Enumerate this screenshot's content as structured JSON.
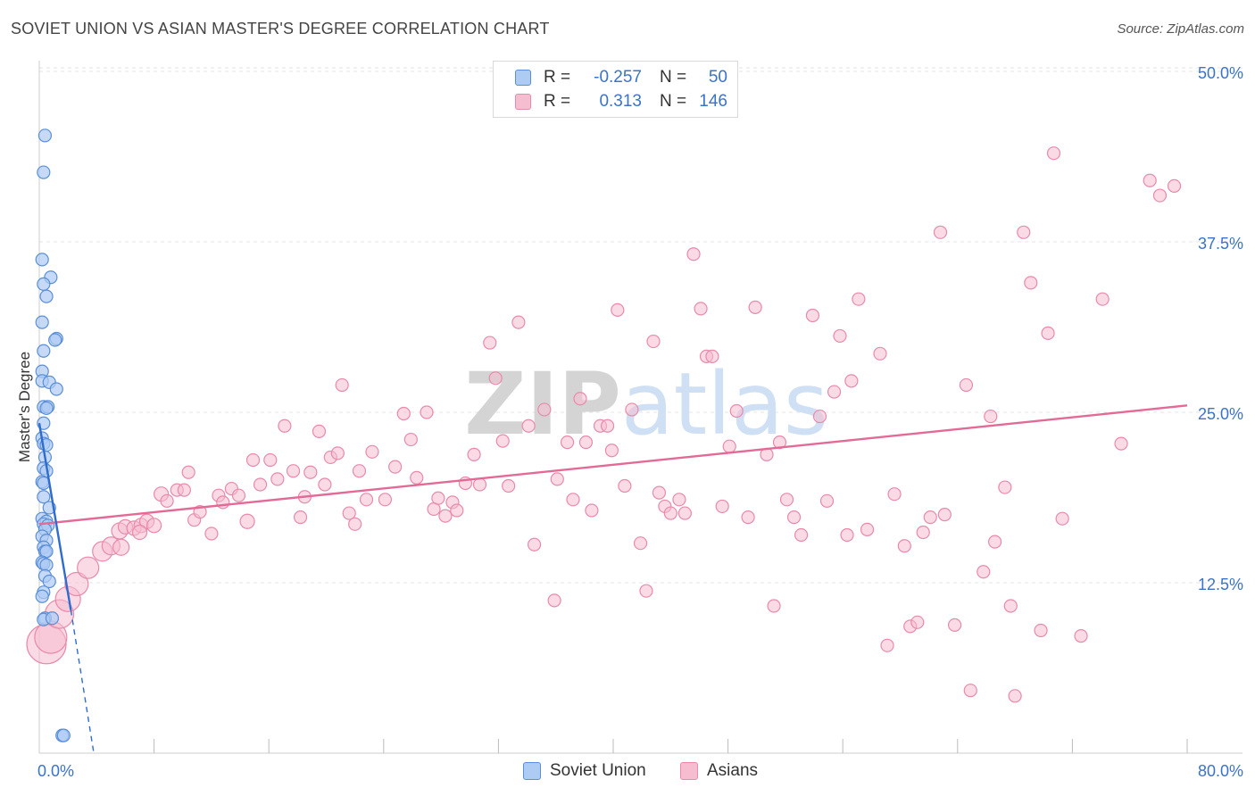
{
  "header": {
    "title": "SOVIET UNION VS ASIAN MASTER'S DEGREE CORRELATION CHART",
    "source": "Source: ZipAtlas.com"
  },
  "legend": {
    "rows": [
      {
        "r_label": "R =",
        "r_value": "-0.257",
        "n_label": "N =",
        "n_value": "50"
      },
      {
        "r_label": "R =",
        "r_value": "0.313",
        "n_label": "N =",
        "n_value": "146"
      }
    ],
    "bottom": [
      "Soviet Union",
      "Asians"
    ]
  },
  "colors": {
    "soviet_fill": "#aecbf3",
    "soviet_stroke": "#5a8fd8",
    "soviet_line": "#2f6ccf",
    "asian_fill": "#f6bcd0",
    "asian_stroke": "#e98aaa",
    "asian_line": "#e36a97",
    "axis_text": "#3b73c8",
    "grid": "#e4e4e4",
    "watermark": "#d7e3f3"
  },
  "chart_data": {
    "type": "scatter",
    "title": "SOVIET UNION VS ASIAN MASTER'S DEGREE CORRELATION CHART",
    "xlabel": "",
    "ylabel": "Master's Degree",
    "xlim": [
      0,
      80
    ],
    "ylim": [
      0,
      50
    ],
    "x_tick_labels": [
      "0.0%",
      "80.0%"
    ],
    "y_ticks": [
      12.5,
      25.0,
      37.5,
      50.0
    ],
    "y_tick_labels": [
      "12.5%",
      "25.0%",
      "37.5%",
      "50.0%"
    ],
    "watermark": "ZIPatlas",
    "series": [
      {
        "name": "Soviet Union",
        "R": -0.257,
        "N": 50,
        "trend": {
          "x0": 0.0,
          "y0": 24.2,
          "x1": 2.2,
          "y1": 10.5,
          "dash_to_x": 3.8,
          "dash_to_y": 0.0
        },
        "points": [
          [
            0.4,
            45.3
          ],
          [
            0.3,
            42.6
          ],
          [
            0.2,
            36.2
          ],
          [
            0.8,
            34.9
          ],
          [
            0.3,
            34.4
          ],
          [
            0.5,
            33.5
          ],
          [
            0.2,
            31.6
          ],
          [
            1.2,
            30.4
          ],
          [
            1.1,
            30.3
          ],
          [
            0.3,
            29.5
          ],
          [
            0.2,
            28.0
          ],
          [
            0.2,
            27.3
          ],
          [
            0.7,
            27.2
          ],
          [
            1.2,
            26.7
          ],
          [
            0.3,
            25.4
          ],
          [
            0.6,
            25.4
          ],
          [
            0.5,
            25.3
          ],
          [
            0.3,
            24.2
          ],
          [
            0.2,
            23.1
          ],
          [
            0.3,
            22.7
          ],
          [
            0.5,
            22.6
          ],
          [
            0.4,
            21.7
          ],
          [
            0.3,
            20.9
          ],
          [
            0.5,
            20.7
          ],
          [
            0.2,
            19.9
          ],
          [
            0.3,
            19.8
          ],
          [
            0.3,
            18.8
          ],
          [
            0.7,
            18.0
          ],
          [
            0.2,
            17.2
          ],
          [
            0.5,
            17.0
          ],
          [
            0.3,
            16.8
          ],
          [
            0.6,
            16.7
          ],
          [
            0.4,
            16.4
          ],
          [
            0.2,
            15.9
          ],
          [
            0.5,
            15.6
          ],
          [
            0.3,
            15.1
          ],
          [
            0.4,
            14.8
          ],
          [
            0.5,
            14.8
          ],
          [
            0.2,
            14.0
          ],
          [
            0.3,
            13.9
          ],
          [
            0.5,
            13.8
          ],
          [
            0.4,
            13.0
          ],
          [
            0.7,
            12.6
          ],
          [
            0.3,
            11.8
          ],
          [
            0.2,
            11.5
          ],
          [
            0.4,
            9.9
          ],
          [
            0.3,
            9.8
          ],
          [
            0.9,
            9.9
          ],
          [
            1.6,
            1.3
          ],
          [
            1.7,
            1.3
          ]
        ]
      },
      {
        "name": "Asians",
        "R": 0.313,
        "N": 146,
        "trend": {
          "x0": 0.0,
          "y0": 16.8,
          "x1": 80.0,
          "y1": 25.5
        },
        "points": [
          [
            0.5,
            8.0,
            22
          ],
          [
            0.8,
            8.5,
            18
          ],
          [
            1.4,
            10.2,
            16
          ],
          [
            2.0,
            11.3,
            14
          ],
          [
            2.6,
            12.4,
            13
          ],
          [
            3.4,
            13.6,
            12
          ],
          [
            4.4,
            14.8,
            11
          ],
          [
            5.0,
            15.2,
            10
          ],
          [
            5.7,
            15.1,
            9
          ],
          [
            5.6,
            16.3,
            9
          ],
          [
            6.0,
            16.6,
            8
          ],
          [
            6.6,
            16.5,
            8
          ],
          [
            7.1,
            16.7,
            8
          ],
          [
            7.5,
            17.0,
            8
          ],
          [
            8.0,
            16.7,
            8
          ],
          [
            7.0,
            16.2,
            8
          ],
          [
            8.5,
            19.0,
            8
          ],
          [
            8.9,
            18.5,
            7
          ],
          [
            9.6,
            19.3,
            7
          ],
          [
            10.1,
            19.3,
            7
          ],
          [
            10.4,
            20.6,
            7
          ],
          [
            10.8,
            17.1,
            7
          ],
          [
            11.2,
            17.7,
            7
          ],
          [
            12.0,
            16.1,
            7
          ],
          [
            12.5,
            18.9,
            7
          ],
          [
            12.8,
            18.4,
            7
          ],
          [
            13.4,
            19.4,
            7
          ],
          [
            13.9,
            18.9,
            7
          ],
          [
            14.5,
            17.0,
            8
          ],
          [
            14.9,
            21.5,
            7
          ],
          [
            15.4,
            19.7,
            7
          ],
          [
            16.1,
            21.5,
            7
          ],
          [
            16.6,
            20.1,
            7
          ],
          [
            17.1,
            24.0,
            7
          ],
          [
            17.7,
            20.7,
            7
          ],
          [
            18.2,
            17.3,
            7
          ],
          [
            18.5,
            18.8,
            7
          ],
          [
            18.9,
            20.6,
            7
          ],
          [
            19.5,
            23.6,
            7
          ],
          [
            19.9,
            19.7,
            7
          ],
          [
            20.3,
            21.7,
            7
          ],
          [
            20.8,
            22.0,
            7
          ],
          [
            21.1,
            27.0,
            7
          ],
          [
            21.6,
            17.6,
            7
          ],
          [
            22.0,
            16.8,
            7
          ],
          [
            22.3,
            20.7,
            7
          ],
          [
            22.8,
            18.6,
            7
          ],
          [
            23.2,
            22.1,
            7
          ],
          [
            24.1,
            18.6,
            7
          ],
          [
            24.8,
            21.0,
            7
          ],
          [
            25.4,
            24.9,
            7
          ],
          [
            25.9,
            23.0,
            7
          ],
          [
            26.3,
            20.2,
            7
          ],
          [
            27.0,
            25.0,
            7
          ],
          [
            27.5,
            17.9,
            7
          ],
          [
            27.8,
            18.7,
            7
          ],
          [
            28.3,
            17.4,
            7
          ],
          [
            28.8,
            18.4,
            7
          ],
          [
            29.1,
            17.8,
            7
          ],
          [
            29.7,
            19.8,
            7
          ],
          [
            30.3,
            21.9,
            7
          ],
          [
            30.7,
            19.7,
            7
          ],
          [
            31.4,
            30.1,
            7
          ],
          [
            31.8,
            27.5,
            7
          ],
          [
            32.3,
            22.9,
            7
          ],
          [
            32.7,
            19.6,
            7
          ],
          [
            33.4,
            31.6,
            7
          ],
          [
            34.1,
            24.0,
            7
          ],
          [
            34.5,
            15.3,
            7
          ],
          [
            35.2,
            25.2,
            7
          ],
          [
            35.9,
            11.2,
            7
          ],
          [
            36.1,
            20.1,
            7
          ],
          [
            36.8,
            22.8,
            7
          ],
          [
            37.2,
            18.6,
            7
          ],
          [
            37.7,
            26.0,
            7
          ],
          [
            38.1,
            22.8,
            7
          ],
          [
            38.5,
            17.8,
            7
          ],
          [
            39.1,
            24.0,
            7
          ],
          [
            39.6,
            24.0,
            7
          ],
          [
            39.9,
            22.2,
            7
          ],
          [
            40.3,
            32.5,
            7
          ],
          [
            40.8,
            19.6,
            7
          ],
          [
            41.3,
            25.2,
            7
          ],
          [
            41.9,
            15.4,
            7
          ],
          [
            42.3,
            11.9,
            7
          ],
          [
            42.8,
            30.2,
            7
          ],
          [
            43.2,
            19.1,
            7
          ],
          [
            43.6,
            18.1,
            7
          ],
          [
            44.0,
            17.6,
            7
          ],
          [
            44.6,
            18.6,
            7
          ],
          [
            45.0,
            17.6,
            7
          ],
          [
            45.6,
            36.6,
            7
          ],
          [
            46.1,
            32.6,
            7
          ],
          [
            46.5,
            29.1,
            7
          ],
          [
            46.9,
            29.1,
            7
          ],
          [
            47.6,
            18.1,
            7
          ],
          [
            48.1,
            22.5,
            7
          ],
          [
            48.6,
            25.1,
            7
          ],
          [
            49.4,
            17.3,
            7
          ],
          [
            49.9,
            32.7,
            7
          ],
          [
            50.7,
            21.9,
            7
          ],
          [
            51.2,
            10.8,
            7
          ],
          [
            51.6,
            22.8,
            7
          ],
          [
            52.1,
            18.6,
            7
          ],
          [
            52.6,
            17.3,
            7
          ],
          [
            53.1,
            16.0,
            7
          ],
          [
            53.9,
            32.1,
            7
          ],
          [
            54.4,
            24.7,
            7
          ],
          [
            54.9,
            18.5,
            7
          ],
          [
            55.4,
            26.5,
            7
          ],
          [
            55.8,
            30.6,
            7
          ],
          [
            56.3,
            16.0,
            7
          ],
          [
            56.6,
            27.3,
            7
          ],
          [
            57.1,
            33.3,
            7
          ],
          [
            57.7,
            16.4,
            7
          ],
          [
            58.6,
            29.3,
            7
          ],
          [
            59.1,
            7.9,
            7
          ],
          [
            59.6,
            19.0,
            7
          ],
          [
            60.3,
            15.2,
            7
          ],
          [
            60.7,
            9.3,
            7
          ],
          [
            61.2,
            9.6,
            7
          ],
          [
            61.6,
            16.2,
            7
          ],
          [
            62.1,
            17.3,
            7
          ],
          [
            62.8,
            38.2,
            7
          ],
          [
            63.1,
            17.5,
            7
          ],
          [
            63.8,
            9.4,
            7
          ],
          [
            64.6,
            27.0,
            7
          ],
          [
            64.9,
            4.6,
            7
          ],
          [
            65.8,
            13.3,
            7
          ],
          [
            66.3,
            24.7,
            7
          ],
          [
            66.6,
            15.5,
            7
          ],
          [
            67.3,
            19.5,
            7
          ],
          [
            67.7,
            10.8,
            7
          ],
          [
            68.0,
            4.2,
            7
          ],
          [
            68.6,
            38.2,
            7
          ],
          [
            69.1,
            34.5,
            7
          ],
          [
            69.8,
            9.0,
            7
          ],
          [
            70.3,
            30.8,
            7
          ],
          [
            70.7,
            44.0,
            7
          ],
          [
            71.3,
            17.2,
            7
          ],
          [
            72.6,
            8.6,
            7
          ],
          [
            74.1,
            33.3,
            7
          ],
          [
            75.4,
            22.7,
            7
          ],
          [
            77.4,
            42.0,
            7
          ],
          [
            78.1,
            40.9,
            7
          ],
          [
            79.1,
            41.6,
            7
          ]
        ]
      }
    ]
  }
}
